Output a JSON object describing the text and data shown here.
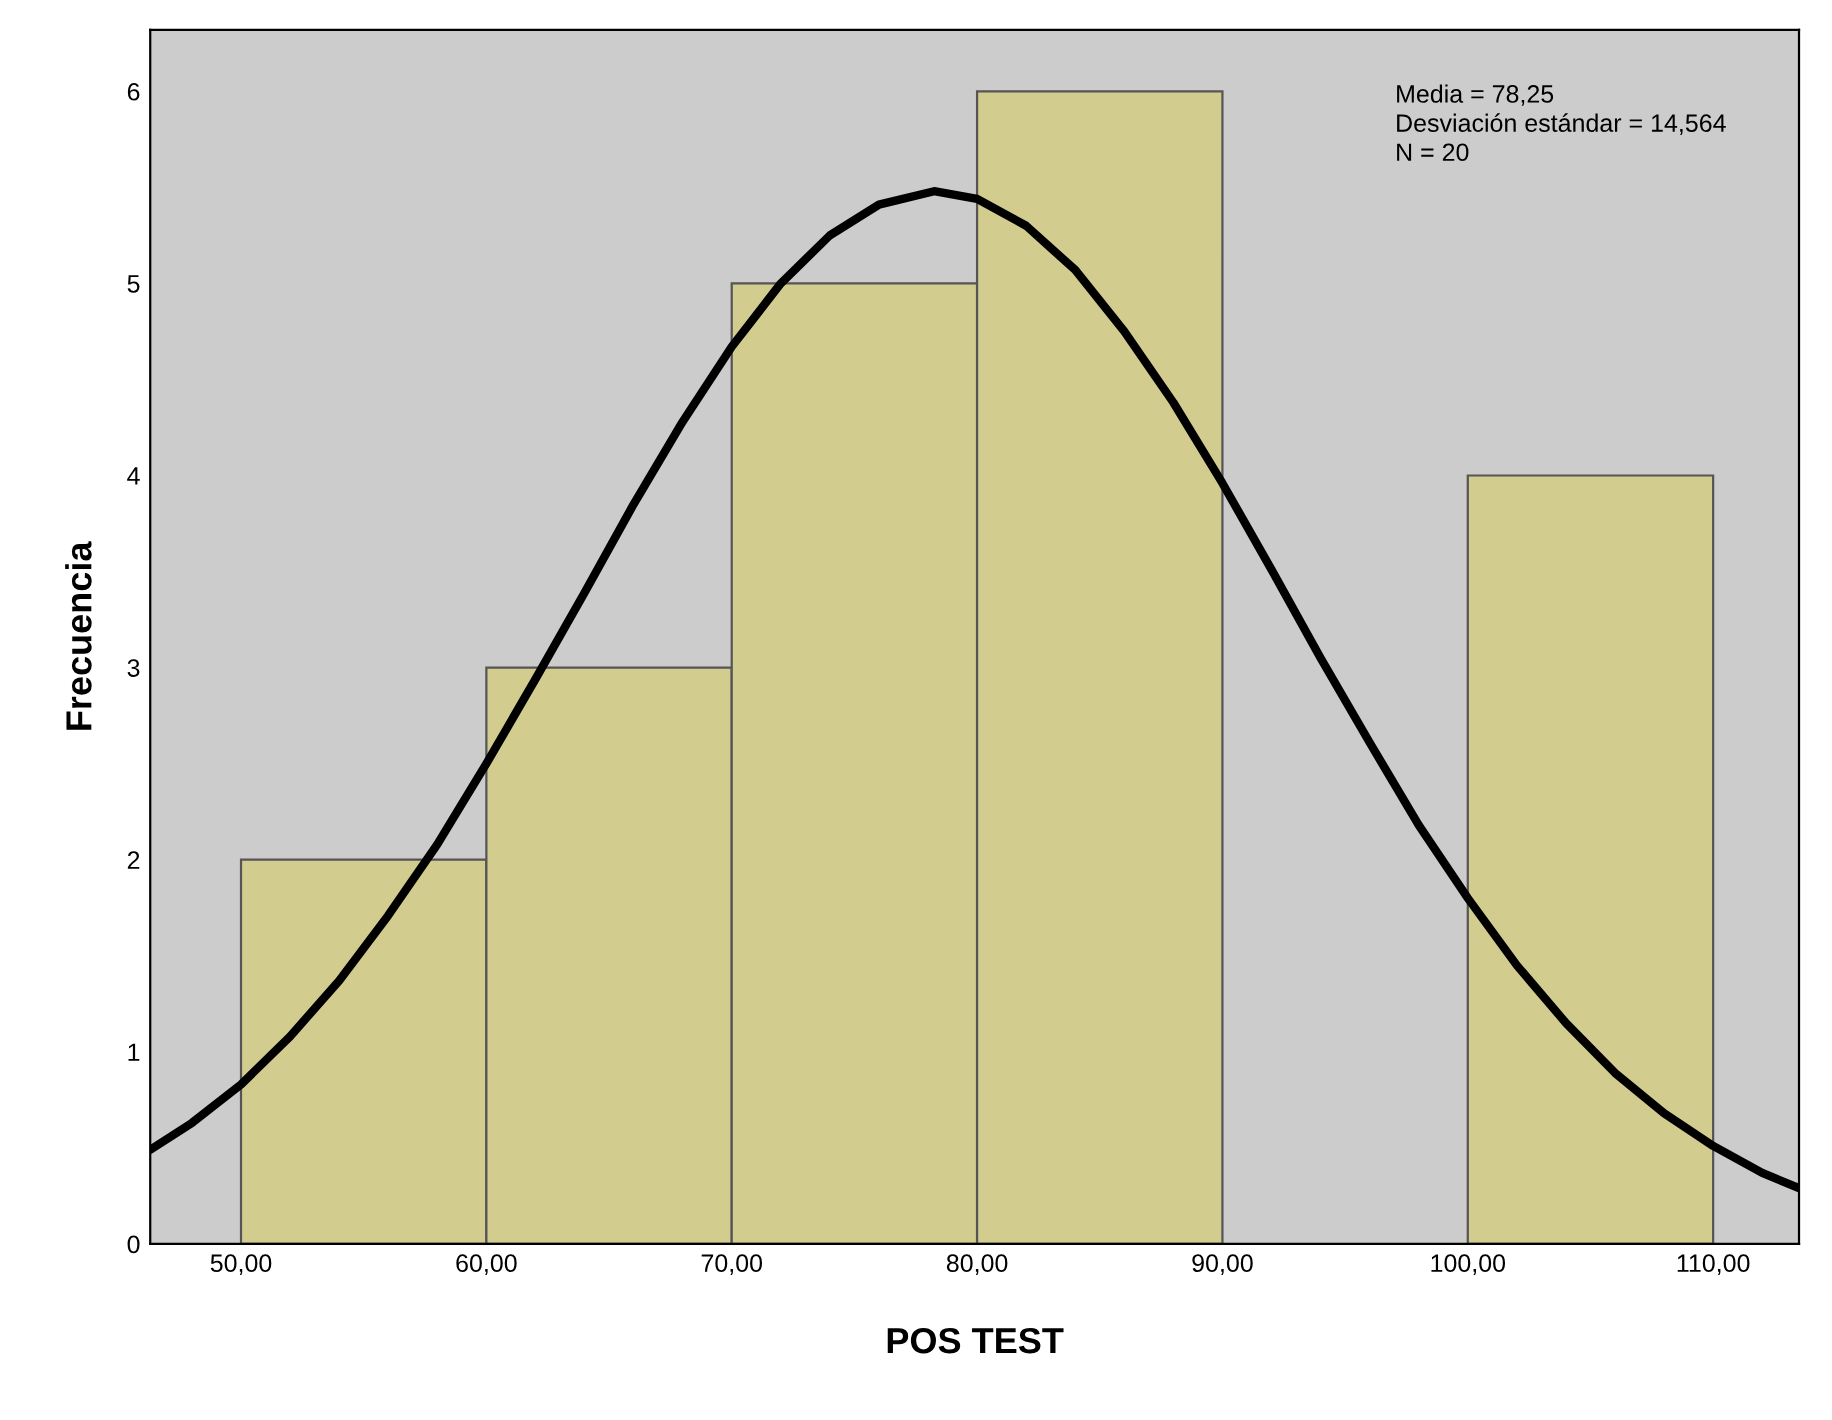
{
  "chart_data": {
    "type": "histogram",
    "xlabel": "POS TEST",
    "ylabel": "Frecuencia",
    "bins": [
      50,
      60,
      70,
      80,
      90,
      100,
      110
    ],
    "values": [
      2,
      3,
      5,
      6,
      0,
      4
    ],
    "color": "#d2cc8f",
    "series": [
      {
        "type": "line",
        "color": "#000000",
        "x": [
          46.3,
          48,
          50,
          52,
          54,
          56,
          58,
          60,
          62,
          64,
          66,
          68,
          70,
          72,
          74,
          76,
          78.25,
          80,
          82,
          84,
          86,
          88,
          90,
          92,
          94,
          96,
          98,
          100,
          102,
          104,
          106,
          108,
          110,
          112,
          113.5
        ],
        "values": [
          0.49,
          0.63,
          0.83,
          1.08,
          1.37,
          1.71,
          2.08,
          2.5,
          2.94,
          3.39,
          3.85,
          4.28,
          4.67,
          5.0,
          5.25,
          5.41,
          5.48,
          5.44,
          5.3,
          5.07,
          4.75,
          4.38,
          3.96,
          3.51,
          3.05,
          2.61,
          2.18,
          1.8,
          1.45,
          1.15,
          0.89,
          0.68,
          0.51,
          0.37,
          0.29
        ]
      }
    ],
    "annotations": [
      "Media = 78,25",
      "Desviación estándar = 14,564",
      "N = 20"
    ],
    "xlim": [
      46.3,
      113.5
    ],
    "ylim": [
      0,
      6.32
    ],
    "xticks": [
      {
        "value": 50,
        "label": "50,00"
      },
      {
        "value": 60,
        "label": "60,00"
      },
      {
        "value": 70,
        "label": "70,00"
      },
      {
        "value": 80,
        "label": "80,00"
      },
      {
        "value": 90,
        "label": "90,00"
      },
      {
        "value": 100,
        "label": "100,00"
      },
      {
        "value": 110,
        "label": "110,00"
      }
    ],
    "yticks": [
      0,
      1,
      2,
      3,
      4,
      5,
      6
    ],
    "grid": false
  }
}
